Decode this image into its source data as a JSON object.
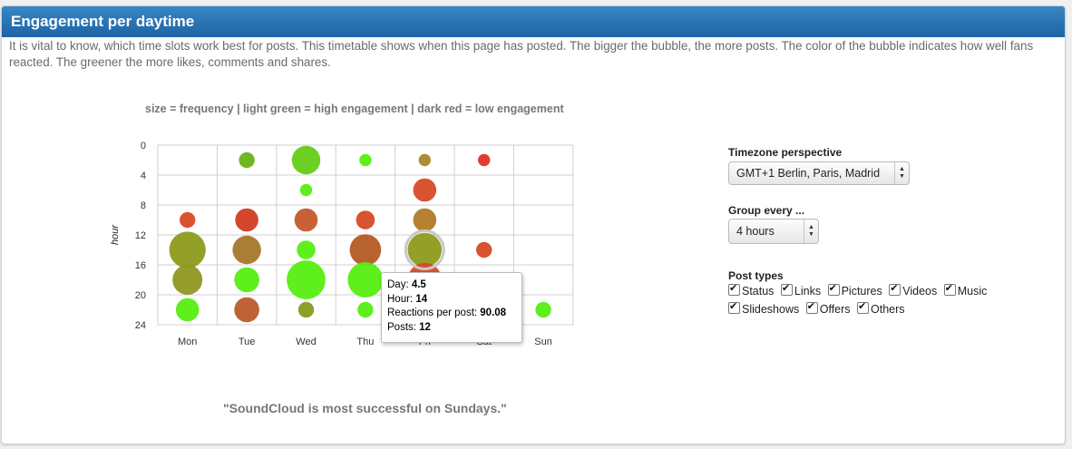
{
  "panel": {
    "title": "Engagement per daytime",
    "description": "It is vital to know, which time slots work best for posts. This timetable shows when this page has posted. The bigger the bubble, the more posts. The color of the bubble indicates how well fans reacted. The greener the more likes, comments and shares.",
    "conclusion": "\"SoundCloud is most successful on Sundays.\""
  },
  "controls": {
    "timezone_label": "Timezone perspective",
    "timezone_value": "GMT+1 Berlin, Paris, Madrid",
    "group_label": "Group every ...",
    "group_value": "4 hours",
    "post_types_label": "Post types",
    "post_types": [
      "Status",
      "Links",
      "Pictures",
      "Videos",
      "Music",
      "Slideshows",
      "Offers",
      "Others"
    ]
  },
  "tooltip": {
    "day_label": "Day: ",
    "day_value": "4.5",
    "hour_label": "Hour: ",
    "hour_value": "14",
    "reactions_label": "Reactions per post: ",
    "reactions_value": "90.08",
    "posts_label": "Posts: ",
    "posts_value": "12"
  },
  "chart_data": {
    "type": "scatter",
    "title": "size = frequency | light green = high engagement | dark red = low engagement",
    "ylabel": "hour",
    "categories": [
      "Mon",
      "Tue",
      "Wed",
      "Thu",
      "Fri",
      "Sat",
      "Sun"
    ],
    "y_ticks": [
      "0",
      "4",
      "8",
      "12",
      "16",
      "20",
      "24"
    ],
    "ylim": [
      0,
      24
    ],
    "grid": true,
    "points": [
      {
        "day": 1,
        "hour": 10,
        "posts": 2,
        "color": "#d84a25"
      },
      {
        "day": 1,
        "hour": 14,
        "posts": 14,
        "color": "#8c9b1c"
      },
      {
        "day": 1,
        "hour": 18,
        "posts": 9,
        "color": "#8e9821"
      },
      {
        "day": 1,
        "hour": 22,
        "posts": 5,
        "color": "#55ee10"
      },
      {
        "day": 2,
        "hour": 2,
        "posts": 2,
        "color": "#69b319"
      },
      {
        "day": 2,
        "hour": 10,
        "posts": 5,
        "color": "#d13d23"
      },
      {
        "day": 2,
        "hour": 14,
        "posts": 8,
        "color": "#a7772a"
      },
      {
        "day": 2,
        "hour": 18,
        "posts": 6,
        "color": "#55ee10"
      },
      {
        "day": 2,
        "hour": 22,
        "posts": 6,
        "color": "#bb5a2c"
      },
      {
        "day": 3,
        "hour": 2,
        "posts": 8,
        "color": "#64cc16"
      },
      {
        "day": 3,
        "hour": 6,
        "posts": 1,
        "color": "#55ee10"
      },
      {
        "day": 3,
        "hour": 10,
        "posts": 5,
        "color": "#c45a2a"
      },
      {
        "day": 3,
        "hour": 14,
        "posts": 3,
        "color": "#55ee10"
      },
      {
        "day": 3,
        "hour": 18,
        "posts": 16,
        "color": "#55ee10"
      },
      {
        "day": 3,
        "hour": 22,
        "posts": 2,
        "color": "#889920"
      },
      {
        "day": 4,
        "hour": 2,
        "posts": 1,
        "color": "#55ee10"
      },
      {
        "day": 4,
        "hour": 10,
        "posts": 3,
        "color": "#d84a25"
      },
      {
        "day": 4,
        "hour": 14,
        "posts": 10,
        "color": "#b45a25"
      },
      {
        "day": 4,
        "hour": 18,
        "posts": 13,
        "color": "#55ee10"
      },
      {
        "day": 4,
        "hour": 22,
        "posts": 2,
        "color": "#55ee10"
      },
      {
        "day": 5,
        "hour": 2,
        "posts": 1,
        "color": "#a8862a"
      },
      {
        "day": 5,
        "hour": 6,
        "posts": 5,
        "color": "#d84a25"
      },
      {
        "day": 5,
        "hour": 10,
        "posts": 5,
        "color": "#b07a25"
      },
      {
        "day": 5,
        "hour": 14,
        "posts": 12,
        "color": "#8c9b1c"
      },
      {
        "day": 5,
        "hour": 18,
        "posts": 12,
        "color": "#d84a25"
      },
      {
        "day": 6,
        "hour": 2,
        "posts": 1,
        "color": "#e03025"
      },
      {
        "day": 6,
        "hour": 14,
        "posts": 2,
        "color": "#d84a25"
      },
      {
        "day": 7,
        "hour": 22,
        "posts": 2,
        "color": "#55ee10"
      }
    ]
  }
}
